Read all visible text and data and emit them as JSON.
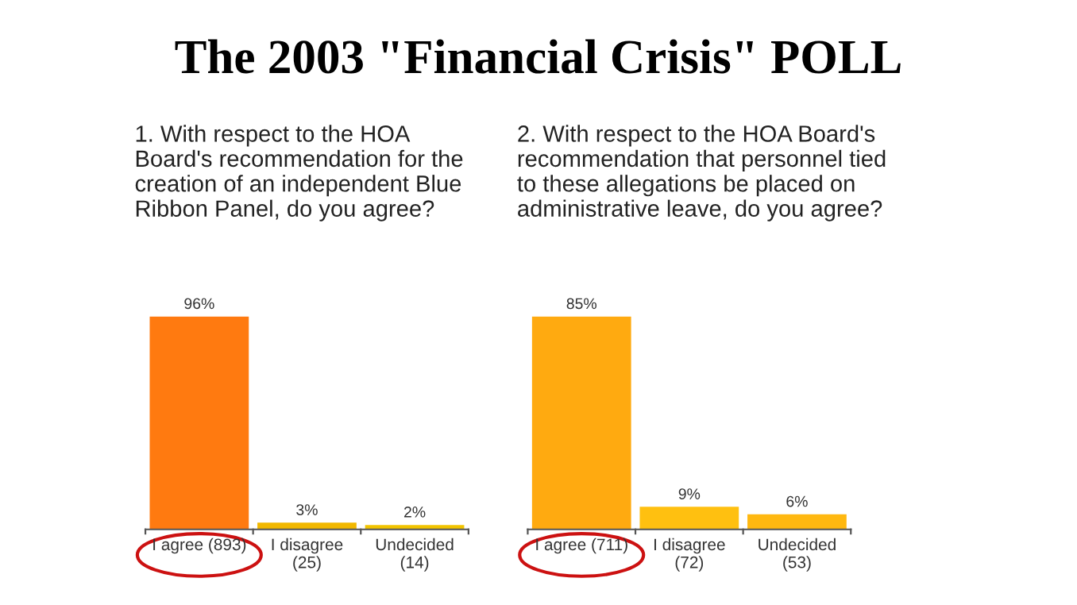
{
  "chart_data": [
    {
      "type": "other",
      "title": "The 2003 \"Financial Crisis\" POLL"
    },
    {
      "type": "bar",
      "title": "1. With respect to the HOA\nBoard's recommendation for the\ncreation of an independent Blue\nRibbon Panel, do you agree?",
      "categories": [
        "I agree (893)",
        "I disagree\n(25)",
        "Undecided\n(14)"
      ],
      "values": [
        96,
        3,
        2
      ],
      "value_labels": [
        "96%",
        "3%",
        "2%"
      ],
      "colors": [
        "#ff7a10",
        "#f2b800",
        "#f2c400"
      ],
      "grid": false,
      "legend": false
    },
    {
      "type": "bar",
      "title": "2. With respect to the HOA Board's\nrecommendation that personnel tied\nto these allegations be placed on\nadministrative leave, do you agree?",
      "categories": [
        "I agree (711)",
        "I disagree\n(72)",
        "Undecided\n(53)"
      ],
      "values": [
        85,
        9,
        6
      ],
      "value_labels": [
        "85%",
        "9%",
        "6%"
      ],
      "colors": [
        "#ffaa10",
        "#ffc010",
        "#ffb810"
      ],
      "grid": false,
      "legend": false
    }
  ]
}
